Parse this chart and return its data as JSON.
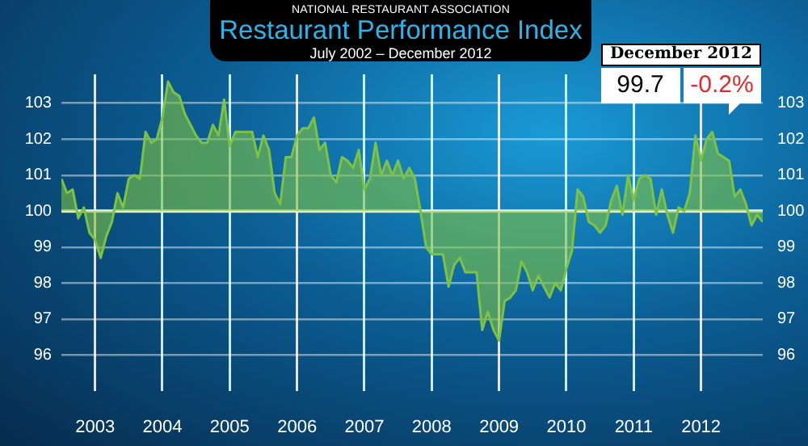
{
  "chart_data": {
    "type": "area",
    "title": "Restaurant Performance Index",
    "subtitle": "July 2002 – December 2012",
    "annotations": [
      "NATIONAL RESTAURANT ASSOCIATION",
      "December 2012",
      "99.7",
      "-0.2%"
    ],
    "x": [
      "2002-07",
      "2002-08",
      "2002-09",
      "2002-10",
      "2002-11",
      "2002-12",
      "2003-01",
      "2003-02",
      "2003-03",
      "2003-04",
      "2003-05",
      "2003-06",
      "2003-07",
      "2003-08",
      "2003-09",
      "2003-10",
      "2003-11",
      "2003-12",
      "2004-01",
      "2004-02",
      "2004-03",
      "2004-04",
      "2004-05",
      "2004-06",
      "2004-07",
      "2004-08",
      "2004-09",
      "2004-10",
      "2004-11",
      "2004-12",
      "2005-01",
      "2005-02",
      "2005-03",
      "2005-04",
      "2005-05",
      "2005-06",
      "2005-07",
      "2005-08",
      "2005-09",
      "2005-10",
      "2005-11",
      "2005-12",
      "2006-01",
      "2006-02",
      "2006-03",
      "2006-04",
      "2006-05",
      "2006-06",
      "2006-07",
      "2006-08",
      "2006-09",
      "2006-10",
      "2006-11",
      "2006-12",
      "2007-01",
      "2007-02",
      "2007-03",
      "2007-04",
      "2007-05",
      "2007-06",
      "2007-07",
      "2007-08",
      "2007-09",
      "2007-10",
      "2007-11",
      "2007-12",
      "2008-01",
      "2008-02",
      "2008-03",
      "2008-04",
      "2008-05",
      "2008-06",
      "2008-07",
      "2008-08",
      "2008-09",
      "2008-10",
      "2008-11",
      "2008-12",
      "2009-01",
      "2009-02",
      "2009-03",
      "2009-04",
      "2009-05",
      "2009-06",
      "2009-07",
      "2009-08",
      "2009-09",
      "2009-10",
      "2009-11",
      "2009-12",
      "2010-01",
      "2010-02",
      "2010-03",
      "2010-04",
      "2010-05",
      "2010-06",
      "2010-07",
      "2010-08",
      "2010-09",
      "2010-10",
      "2010-11",
      "2010-12",
      "2011-01",
      "2011-02",
      "2011-03",
      "2011-04",
      "2011-05",
      "2011-06",
      "2011-07",
      "2011-08",
      "2011-09",
      "2011-10",
      "2011-11",
      "2011-12",
      "2012-01",
      "2012-02",
      "2012-03",
      "2012-04",
      "2012-05",
      "2012-06",
      "2012-07",
      "2012-08",
      "2012-09",
      "2012-10",
      "2012-11",
      "2012-12"
    ],
    "series": [
      {
        "color": "#7dc242",
        "values": [
          100.9,
          100.5,
          100.6,
          99.8,
          100.1,
          99.4,
          99.2,
          98.7,
          99.3,
          99.7,
          100.5,
          100.1,
          100.9,
          101.0,
          100.9,
          102.2,
          101.9,
          102.0,
          102.6,
          103.6,
          103.3,
          103.2,
          102.7,
          102.4,
          102.1,
          101.9,
          101.9,
          102.4,
          102.1,
          103.1,
          101.8,
          102.2,
          102.2,
          102.2,
          102.2,
          101.5,
          102.1,
          101.7,
          100.5,
          100.2,
          101.5,
          101.5,
          102.1,
          102.3,
          102.3,
          102.6,
          101.7,
          101.9,
          101.0,
          100.8,
          101.5,
          101.4,
          101.2,
          101.7,
          100.6,
          100.9,
          101.9,
          101.0,
          101.4,
          101.0,
          101.4,
          100.9,
          101.2,
          100.9,
          100.0,
          99.0,
          98.8,
          98.8,
          98.8,
          97.9,
          98.5,
          98.7,
          98.3,
          98.3,
          98.3,
          96.7,
          97.2,
          96.7,
          96.4,
          97.5,
          97.6,
          97.8,
          98.6,
          98.3,
          97.8,
          98.2,
          97.9,
          97.6,
          98.0,
          97.8,
          98.4,
          98.9,
          100.6,
          100.4,
          99.7,
          99.6,
          99.4,
          99.6,
          100.3,
          100.7,
          99.9,
          101.0,
          100.3,
          100.9,
          101.0,
          100.9,
          99.9,
          100.6,
          99.9,
          99.4,
          100.1,
          100.0,
          100.5,
          102.1,
          101.4,
          102.0,
          102.2,
          101.6,
          101.5,
          101.4,
          100.4,
          100.6,
          100.2,
          99.6,
          99.9,
          99.7
        ]
      }
    ],
    "xlim": [
      "2002-07",
      "2012-12"
    ],
    "xticks": [
      {
        "value": "2003",
        "label": "2003"
      },
      {
        "value": "2004",
        "label": "2004"
      },
      {
        "value": "2005",
        "label": "2005"
      },
      {
        "value": "2006",
        "label": "2006"
      },
      {
        "value": "2007",
        "label": "2007"
      },
      {
        "value": "2008",
        "label": "2008"
      },
      {
        "value": "2009",
        "label": "2009"
      },
      {
        "value": "2010",
        "label": "2010"
      },
      {
        "value": "2011",
        "label": "2011"
      },
      {
        "value": "2012",
        "label": "2012"
      }
    ],
    "ylim": [
      95,
      103.8
    ],
    "yticks": [
      96,
      97,
      98,
      99,
      100,
      101,
      102,
      103
    ],
    "y2lim": [
      95,
      103.8
    ],
    "y2ticks": [
      96,
      97,
      98,
      99,
      100,
      101,
      102,
      103
    ],
    "ref_lines": [
      {
        "axis": "y",
        "value": 100,
        "color": "#e8f4d8"
      }
    ],
    "grid": true,
    "legend": false,
    "marker": "none",
    "line_style": "solid"
  }
}
